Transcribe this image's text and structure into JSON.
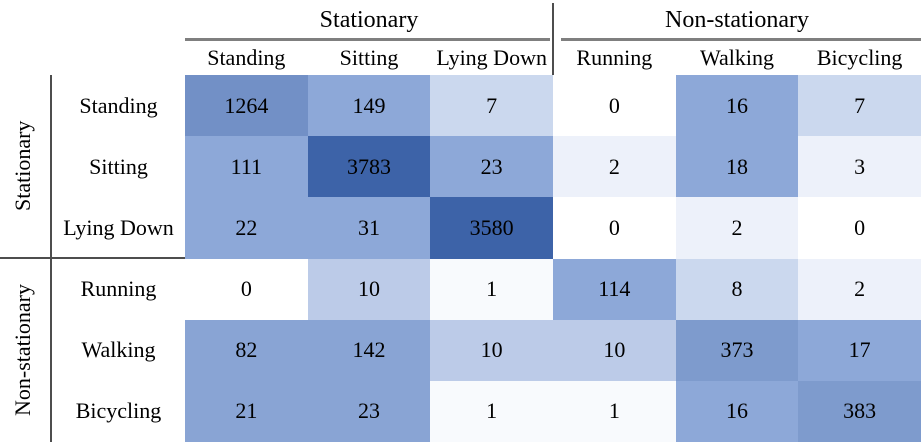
{
  "chart_data": {
    "type": "heatmap",
    "title": "",
    "description": "Confusion matrix of activity classification: actual activities (rows) vs predicted activities (columns), grouped into Stationary and Non-stationary",
    "col_groups": [
      {
        "label": "Stationary",
        "span": 3
      },
      {
        "label": "Non-stationary",
        "span": 3
      }
    ],
    "row_groups": [
      {
        "label": "Stationary",
        "span": 3
      },
      {
        "label": "Non-stationary",
        "span": 3
      }
    ],
    "cols": [
      "Standing",
      "Sitting",
      "Lying Down",
      "Running",
      "Walking",
      "Bicycling"
    ],
    "rows": [
      "Standing",
      "Sitting",
      "Lying Down",
      "Running",
      "Walking",
      "Bicycling"
    ],
    "values": [
      [
        1264,
        149,
        7,
        0,
        16,
        7
      ],
      [
        111,
        3783,
        23,
        2,
        18,
        3
      ],
      [
        22,
        31,
        3580,
        0,
        2,
        0
      ],
      [
        0,
        10,
        1,
        114,
        8,
        2
      ],
      [
        82,
        142,
        10,
        10,
        373,
        17
      ],
      [
        21,
        23,
        1,
        1,
        16,
        383
      ]
    ],
    "cell_colors": [
      [
        "#7290c6",
        "#8da8d8",
        "#cbd8ee",
        "#ffffff",
        "#8da8d8",
        "#cbd8ee"
      ],
      [
        "#8da8d8",
        "#3d63a8",
        "#8da8d8",
        "#edf1fa",
        "#8da8d8",
        "#edf1fa"
      ],
      [
        "#8da8d8",
        "#8da8d8",
        "#3d63a8",
        "#ffffff",
        "#edf1fa",
        "#ffffff"
      ],
      [
        "#ffffff",
        "#bccbe8",
        "#f8fafd",
        "#8da8d8",
        "#cbd8ee",
        "#edf1fa"
      ],
      [
        "#89a4d4",
        "#89a4d4",
        "#bccbe8",
        "#bccbe8",
        "#7e9bcd",
        "#8da8d8"
      ],
      [
        "#89a4d4",
        "#89a4d4",
        "#f8fafd",
        "#f8fafd",
        "#8da8d8",
        "#7e9bcd"
      ]
    ],
    "colormap": {
      "name": "blues",
      "min_color": "#ffffff",
      "max_color": "#3d63a8"
    },
    "layout": {
      "grid_line_color": "#4d4d4d",
      "group_underline_color": "#7f7f7f",
      "text_color": "#000000",
      "legend": "none",
      "cell_gridlines": false
    }
  }
}
